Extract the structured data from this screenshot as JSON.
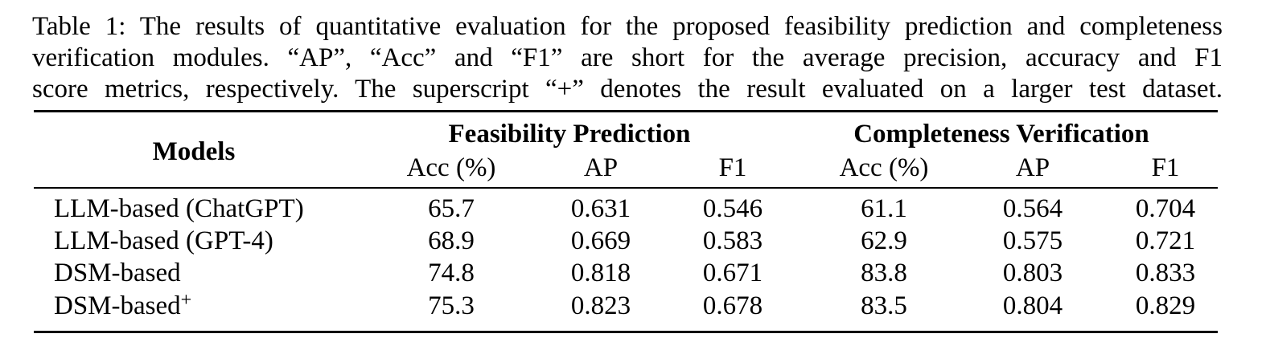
{
  "caption": {
    "lines": [
      "Table 1: The results of quantitative evaluation for the proposed feasibility prediction and completeness",
      "verification modules. “AP”, “Acc” and “F1” are short for the average precision, accuracy and F1",
      "score metrics, respectively. The superscript “+” denotes the result evaluated on a larger test dataset."
    ]
  },
  "table": {
    "models_header": "Models",
    "groups": [
      {
        "label": "Feasibility Prediction"
      },
      {
        "label": "Completeness Verification"
      }
    ],
    "subheaders": [
      "Acc (%)",
      "AP",
      "F1",
      "Acc (%)",
      "AP",
      "F1"
    ],
    "rows": [
      {
        "model": "LLM-based (ChatGPT)",
        "sup": "",
        "values": [
          "65.7",
          "0.631",
          "0.546",
          "61.1",
          "0.564",
          "0.704"
        ]
      },
      {
        "model": "LLM-based (GPT-4)",
        "sup": "",
        "values": [
          "68.9",
          "0.669",
          "0.583",
          "62.9",
          "0.575",
          "0.721"
        ]
      },
      {
        "model": "DSM-based",
        "sup": "",
        "values": [
          "74.8",
          "0.818",
          "0.671",
          "83.8",
          "0.803",
          "0.833"
        ]
      },
      {
        "model": "DSM-based",
        "sup": "+",
        "values": [
          "75.3",
          "0.823",
          "0.678",
          "83.5",
          "0.804",
          "0.829"
        ]
      }
    ]
  }
}
